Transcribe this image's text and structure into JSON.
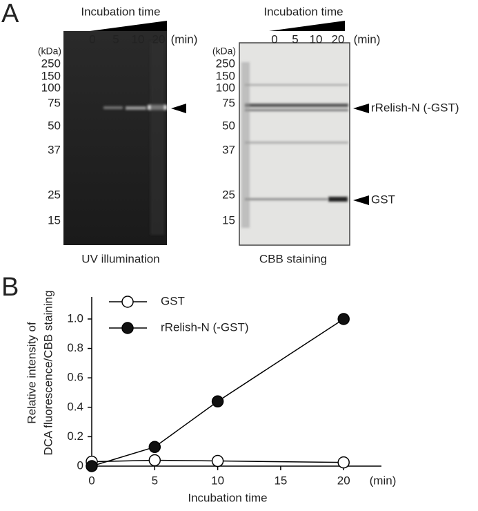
{
  "figure": {
    "panel_a": {
      "letter": "A",
      "gels": [
        {
          "header": "Incubation time",
          "lanes": [
            "0",
            "5",
            "10",
            "20"
          ],
          "unit": "(min)",
          "kda_label": "(kDa)",
          "markers": [
            "250",
            "150",
            "100",
            "75",
            "50",
            "37",
            "25",
            "15"
          ],
          "annotations": [],
          "caption": "UV illumination"
        },
        {
          "header": "Incubation time",
          "lanes": [
            "0",
            "5",
            "10",
            "20"
          ],
          "unit": "(min)",
          "kda_label": "(kDa)",
          "markers": [
            "250",
            "150",
            "100",
            "75",
            "50",
            "37",
            "25",
            "15"
          ],
          "annotations": [
            "rRelish-N (-GST)",
            "GST"
          ],
          "caption": "CBB staining"
        }
      ]
    },
    "panel_b_letter": "B"
  },
  "chart_data": {
    "type": "line",
    "y_label": [
      "Relative intensity of",
      "DCA fluorescence/CBB staining"
    ],
    "x_label": "Incubation time",
    "x_unit": "(min)",
    "x": [
      0,
      5,
      10,
      20
    ],
    "series": [
      {
        "name": "GST",
        "color": "#ffffff",
        "values": [
          0.03,
          0.04,
          0.035,
          0.025
        ]
      },
      {
        "name": "rRelish-N (-GST)",
        "color": "#111111",
        "values": [
          0,
          0.13,
          0.44,
          1.0
        ]
      }
    ],
    "xlim": [
      0,
      23
    ],
    "ylim": [
      0,
      1.15
    ],
    "xticks": [
      0,
      5,
      10,
      15,
      20
    ],
    "yticks": [
      0,
      0.2,
      0.4,
      0.6,
      0.8,
      {
        "value": 1,
        "label": "1.0"
      }
    ],
    "legend": "upper-left"
  }
}
